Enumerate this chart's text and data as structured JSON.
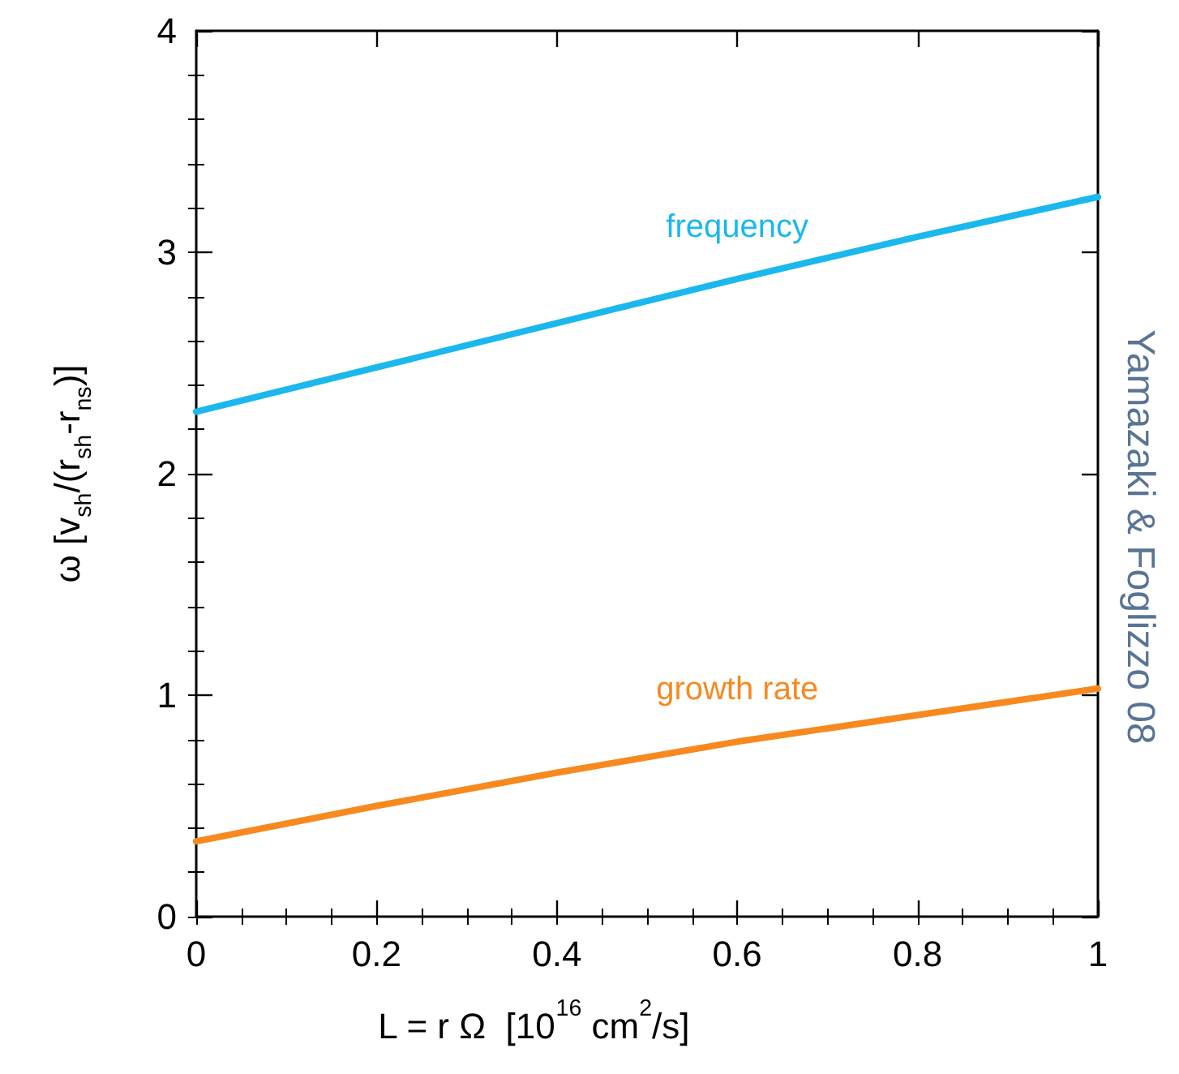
{
  "chart_data": {
    "type": "line",
    "xlabel": "L = r Ω  [10$^{16}$ cm$^{2}$/s]",
    "ylabel": "ω [v$_{sh}$/(r$_{sh}$-r$_{ns}$)]",
    "x": [
      0,
      0.2,
      0.4,
      0.6,
      0.8,
      1
    ],
    "series": [
      {
        "name": "frequency",
        "color": "#1ab8ee",
        "values": [
          2.28,
          2.48,
          2.68,
          2.88,
          3.07,
          3.25
        ]
      },
      {
        "name": "growth rate",
        "color": "#f7891f",
        "values": [
          0.34,
          0.5,
          0.65,
          0.79,
          0.91,
          1.03
        ]
      }
    ],
    "xlim": [
      0,
      1
    ],
    "xticks": [
      0,
      0.2,
      0.4,
      0.6,
      0.8,
      1
    ],
    "ylim": [
      0,
      4
    ],
    "yticks": [
      0,
      1,
      2,
      3,
      4
    ],
    "annotations": [
      "Yamazaki & Foglizzo 08"
    ],
    "grid": false,
    "legend": false,
    "marker": "none",
    "line_style": "solid"
  }
}
